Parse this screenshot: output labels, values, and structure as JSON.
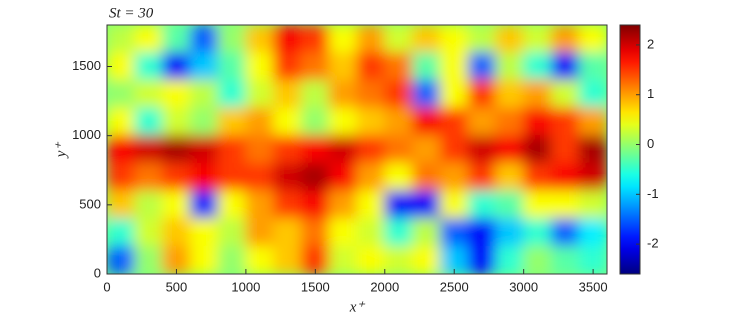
{
  "chart_data": {
    "type": "heatmap",
    "title": "St = 30",
    "x_label": "x⁺",
    "y_label": "y⁺",
    "x": [
      100,
      300,
      500,
      700,
      900,
      1100,
      1300,
      1500,
      1700,
      1900,
      2100,
      2300,
      2500,
      2700,
      2900,
      3100,
      3300,
      3500
    ],
    "y": [
      1700,
      1500,
      1300,
      1100,
      900,
      700,
      500,
      300,
      100
    ],
    "values": [
      [
        0.2,
        0.5,
        -0.3,
        -1.5,
        0,
        0.8,
        1.8,
        1.5,
        0.5,
        1.0,
        0.3,
        0.8,
        0.5,
        0.2,
        0.8,
        0.3,
        1.0,
        0.5
      ],
      [
        0.5,
        -0.5,
        -2,
        -1,
        -0.3,
        0.5,
        1.5,
        1.2,
        0.8,
        1.5,
        1.2,
        -0.3,
        0.5,
        -1.5,
        0.2,
        -0.5,
        -2,
        -0.3
      ],
      [
        0,
        0.3,
        0.5,
        0.2,
        -0.5,
        0.3,
        0.8,
        0.2,
        1.0,
        1.2,
        1.5,
        -1.5,
        0.5,
        1.5,
        0.8,
        1.0,
        0.3,
        -0.5
      ],
      [
        0.5,
        -0.5,
        0.3,
        0,
        0.8,
        1.0,
        0.5,
        0,
        0.5,
        0.8,
        1.0,
        1.8,
        1.5,
        1.0,
        1.2,
        1.8,
        1.5,
        1.0
      ],
      [
        1.8,
        2.0,
        2.2,
        2.0,
        1.5,
        1.2,
        1.5,
        1.8,
        2.0,
        1.5,
        1.2,
        1.0,
        1.5,
        2.0,
        1.8,
        2.2,
        1.5,
        2.2
      ],
      [
        1.5,
        1.2,
        1.5,
        1.8,
        1.5,
        1.5,
        2.0,
        2.2,
        1.8,
        1.0,
        0.5,
        1.2,
        1.0,
        1.5,
        0.8,
        1.5,
        1.8,
        2.0
      ],
      [
        0.8,
        0.2,
        0.5,
        -1.8,
        0.5,
        1.0,
        1.5,
        1.8,
        1.0,
        0.5,
        -2,
        -2,
        0.5,
        -0.5,
        -0.3,
        0.5,
        0.5,
        0.3
      ],
      [
        -0.5,
        0.3,
        0.8,
        0.5,
        0.2,
        1.0,
        0.8,
        1.2,
        0.5,
        0.3,
        -0.5,
        0.2,
        -1.5,
        -2,
        -1.0,
        -0.5,
        -1.5,
        -0.8
      ],
      [
        -1.5,
        0,
        1.0,
        0.5,
        0,
        0.5,
        0.8,
        1.5,
        0.3,
        0.5,
        0.3,
        0.5,
        -1.0,
        -2,
        -0.5,
        0,
        -0.3,
        -0.5
      ]
    ],
    "xlim": [
      0,
      3600
    ],
    "xticks": [
      0,
      500,
      1000,
      1500,
      2000,
      2500,
      3000,
      3500
    ],
    "ylim": [
      0,
      1800
    ],
    "yticks": [
      0,
      500,
      1000,
      1500
    ],
    "colormap": "jet",
    "clim": [
      -2.6,
      2.4
    ],
    "cticks": [
      -2,
      -1,
      0,
      1,
      2
    ]
  }
}
